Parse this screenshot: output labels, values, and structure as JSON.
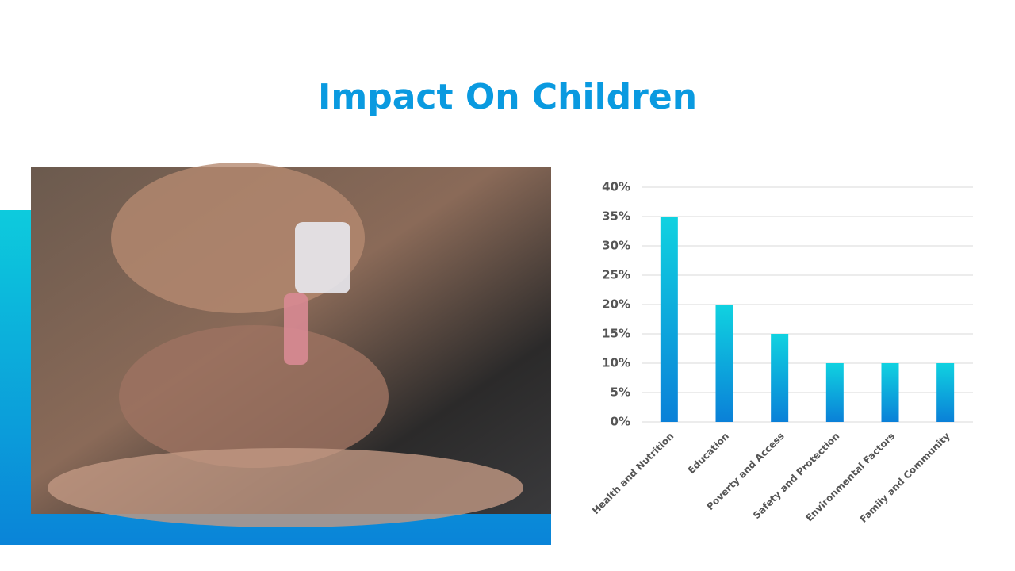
{
  "title": "Impact On Children",
  "chart_data": {
    "type": "bar",
    "categories": [
      "Health and Nutrition",
      "Education",
      "Poverty and Access",
      "Safety and Protection",
      "Environmental Factors",
      "Family and Community"
    ],
    "values": [
      35,
      20,
      15,
      10,
      10,
      10
    ],
    "ylim": [
      0,
      40
    ],
    "yticks": [
      {
        "value": 0,
        "label": "0%"
      },
      {
        "value": 5,
        "label": "5%"
      },
      {
        "value": 10,
        "label": "10%"
      },
      {
        "value": 15,
        "label": "15%"
      },
      {
        "value": 20,
        "label": "20%"
      },
      {
        "value": 25,
        "label": "25%"
      },
      {
        "value": 30,
        "label": "30%"
      },
      {
        "value": 35,
        "label": "35%"
      },
      {
        "value": 40,
        "label": "40%"
      }
    ],
    "grid": true
  }
}
